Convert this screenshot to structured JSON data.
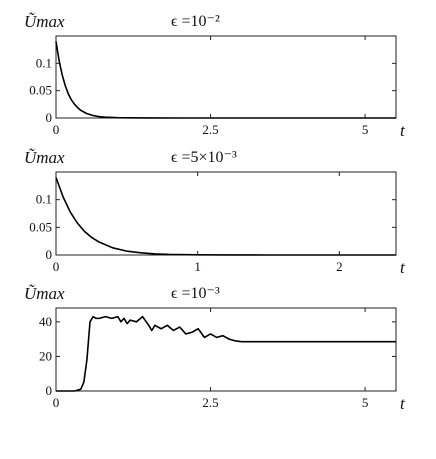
{
  "chart_data": [
    {
      "type": "line",
      "ylabel": "Ũmax",
      "title": "ϵ =10⁻²",
      "xlabel": "t",
      "xlim": [
        0,
        5.5
      ],
      "ylim": [
        0,
        0.15
      ],
      "xticks": [
        0,
        2.5,
        5
      ],
      "xtick_labels": [
        "0",
        "2.5",
        "5"
      ],
      "yticks": [
        0,
        0.05,
        0.1
      ],
      "ytick_labels": [
        "0",
        "0.05",
        "0.1"
      ],
      "grid": false,
      "series": [
        {
          "x": [
            0,
            0.05,
            0.1,
            0.15,
            0.2,
            0.25,
            0.3,
            0.35,
            0.4,
            0.45,
            0.5,
            0.6,
            0.7,
            0.8,
            1.0,
            1.5,
            2.0,
            3.0,
            4.0,
            5.0,
            5.5
          ],
          "values": [
            0.14,
            0.105,
            0.079,
            0.059,
            0.044,
            0.033,
            0.025,
            0.019,
            0.014,
            0.011,
            0.008,
            0.0045,
            0.0025,
            0.0014,
            0.0005,
            0.0001,
            0,
            0,
            0,
            0,
            0
          ]
        }
      ]
    },
    {
      "type": "line",
      "ylabel": "Ũmax",
      "title": "ϵ =5×10⁻³",
      "xlabel": "t",
      "xlim": [
        0,
        2.4
      ],
      "ylim": [
        0,
        0.15
      ],
      "xticks": [
        0,
        1,
        2
      ],
      "xtick_labels": [
        "0",
        "1",
        "2"
      ],
      "yticks": [
        0,
        0.05,
        0.1
      ],
      "ytick_labels": [
        "0",
        "0.05",
        "0.1"
      ],
      "grid": false,
      "series": [
        {
          "x": [
            0,
            0.05,
            0.1,
            0.15,
            0.2,
            0.25,
            0.3,
            0.4,
            0.5,
            0.6,
            0.7,
            0.8,
            1.0,
            1.2,
            1.5,
            2.0,
            2.4
          ],
          "values": [
            0.14,
            0.105,
            0.078,
            0.058,
            0.043,
            0.032,
            0.024,
            0.013,
            0.007,
            0.004,
            0.002,
            0.001,
            0.0003,
            0.0001,
            0,
            0,
            0
          ]
        }
      ]
    },
    {
      "type": "line",
      "ylabel": "Ũmax",
      "title": "ϵ =10⁻³",
      "xlabel": "t",
      "xlim": [
        0,
        5.5
      ],
      "ylim": [
        0,
        48
      ],
      "xticks": [
        0,
        2.5,
        5
      ],
      "xtick_labels": [
        "0",
        "2.5",
        "5"
      ],
      "yticks": [
        0,
        20,
        40
      ],
      "ytick_labels": [
        "0",
        "20",
        "40"
      ],
      "grid": false,
      "series": [
        {
          "x": [
            0,
            0.3,
            0.4,
            0.45,
            0.5,
            0.55,
            0.6,
            0.65,
            0.7,
            0.8,
            0.9,
            1.0,
            1.05,
            1.1,
            1.15,
            1.2,
            1.3,
            1.4,
            1.5,
            1.55,
            1.6,
            1.7,
            1.8,
            1.9,
            2.0,
            2.1,
            2.2,
            2.3,
            2.4,
            2.5,
            2.6,
            2.7,
            2.8,
            2.9,
            3.0,
            3.5,
            4.0,
            5.0,
            5.5
          ],
          "values": [
            0,
            0,
            1,
            5,
            18,
            40,
            43,
            42,
            42,
            43,
            42,
            43,
            40,
            42,
            39,
            41,
            40,
            43,
            38,
            35,
            38,
            36,
            38,
            35,
            37,
            33,
            34,
            36,
            31,
            33,
            31,
            32,
            30,
            29,
            28.5,
            28.5,
            28.5,
            28.5,
            28.5
          ]
        }
      ]
    }
  ]
}
